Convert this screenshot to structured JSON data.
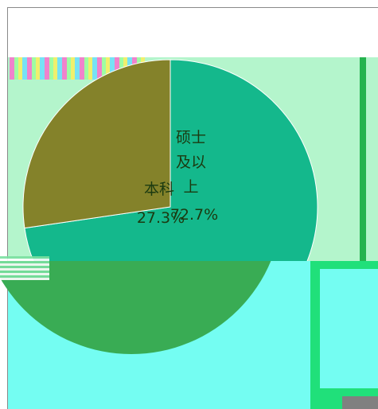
{
  "chart_data": {
    "type": "pie",
    "title": "",
    "slices": [
      {
        "label": "硕士及以上",
        "value": 72.7,
        "percent_label": "72.7%",
        "color": "#14b88c"
      },
      {
        "label": "本科",
        "value": 27.3,
        "percent_label": "27.3%",
        "color": "#84822a"
      }
    ],
    "label_color": "#1b3a10",
    "lower_pie_color": "#39ac54"
  }
}
